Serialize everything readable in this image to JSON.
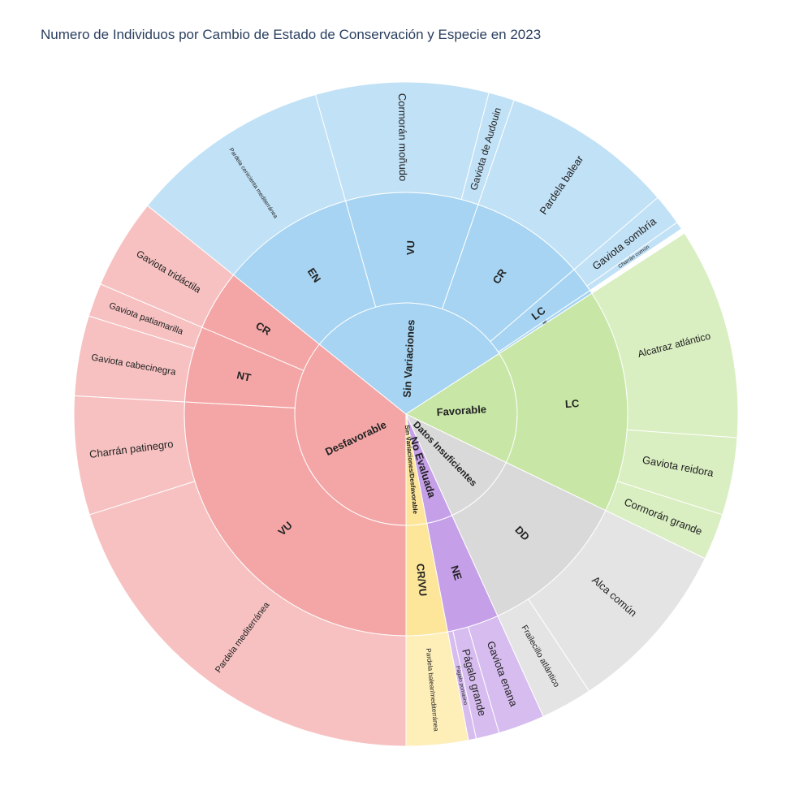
{
  "chart_data": {
    "type": "sunburst",
    "title": "Numero de Individuos por Cambio de Estado de Conservación y Especie en 2023",
    "year": 2023,
    "colors": {
      "Desfavorable": "#f4a6a6",
      "Sin Variaciones": "#a6d4f2",
      "Favorable": "#c8e6a6",
      "Datos Insuficientes": "#d9d9d9",
      "No Evaluada": "#c59fe8",
      "Sin Variaciones/Desfavorable": "#fde69a"
    },
    "data": [
      {
        "name": "Desfavorable",
        "value": 285,
        "children": [
          {
            "name": "VU",
            "value": 206,
            "children": [
              {
                "name": "Pardela mediterránea",
                "value": 160
              },
              {
                "name": "Charrán patinegro",
                "value": 46
              }
            ]
          },
          {
            "name": "NT",
            "value": 44,
            "children": [
              {
                "name": "Gaviota cabecinegra",
                "value": 31
              },
              {
                "name": "Gaviota patiamarilla",
                "value": 13
              }
            ]
          },
          {
            "name": "CR",
            "value": 35,
            "children": [
              {
                "name": "Gaviota tridáctila",
                "value": 35
              }
            ]
          }
        ]
      },
      {
        "name": "Sin Variaciones",
        "value": 239,
        "children": [
          {
            "name": "EN",
            "value": 78,
            "children": [
              {
                "name": "Pardela cenicienta mediterránea",
                "value": 78
              }
            ]
          },
          {
            "name": "VU",
            "value": 77,
            "children": [
              {
                "name": "Cormorán moñudo",
                "value": 67
              },
              {
                "name": "Gaviota de Audouin",
                "value": 10
              }
            ]
          },
          {
            "name": "CR",
            "value": 67,
            "children": [
              {
                "name": "Pardela balear",
                "value": 67
              }
            ]
          },
          {
            "name": "LC",
            "value": 15,
            "children": [
              {
                "name": "Gaviota sombría",
                "value": 12
              },
              {
                "name": "Charrán común",
                "value": 3
              }
            ]
          },
          {
            "name": "NT",
            "value": 2,
            "children": []
          }
        ]
      },
      {
        "name": "Favorable",
        "value": 130,
        "children": [
          {
            "name": "LC",
            "value": 130,
            "children": [
              {
                "name": "Alcatraz atlántico",
                "value": 82
              },
              {
                "name": "Gaviota reidora",
                "value": 30
              },
              {
                "name": "Cormorán grande",
                "value": 18
              }
            ]
          }
        ]
      },
      {
        "name": "Datos Insuficientes",
        "value": 88,
        "children": [
          {
            "name": "DD",
            "value": 88,
            "children": [
              {
                "name": "Alca común",
                "value": 68
              },
              {
                "name": "Frailecillo atlántico",
                "value": 20
              }
            ]
          }
        ]
      },
      {
        "name": "No Evaluada",
        "value": 30,
        "children": [
          {
            "name": "NE",
            "value": 30,
            "children": [
              {
                "name": "Gaviota enana",
                "value": 18
              },
              {
                "name": "Págalo grande",
                "value": 9
              },
              {
                "name": "Págalo pomarino",
                "value": 3
              }
            ]
          }
        ]
      },
      {
        "name": "Sin Variaciones/Desfavorable",
        "value": 24,
        "children": [
          {
            "name": "CR/VU",
            "value": 24,
            "children": [
              {
                "name": "Pardela balear/mediterránea",
                "value": 24
              }
            ]
          }
        ]
      }
    ]
  }
}
